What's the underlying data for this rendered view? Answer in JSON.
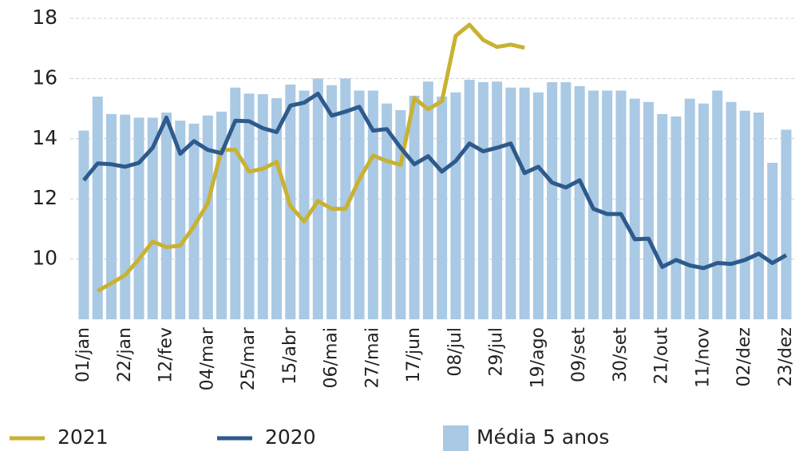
{
  "chart_data": {
    "type": "bar_line",
    "categories": [
      "01/jan",
      null,
      null,
      "22/jan",
      null,
      null,
      "12/fev",
      null,
      null,
      "04/mar",
      null,
      null,
      "25/mar",
      null,
      null,
      "15/abr",
      null,
      null,
      "06/mai",
      null,
      null,
      "27/mai",
      null,
      null,
      "17/jun",
      null,
      null,
      "08/jul",
      null,
      null,
      "29/jul",
      null,
      null,
      "19/ago",
      null,
      null,
      "09/set",
      null,
      null,
      "30/set",
      null,
      null,
      "21/out",
      null,
      null,
      "11/nov",
      null,
      null,
      "02/dez",
      null,
      null,
      "23/dez"
    ],
    "series": [
      {
        "name": "2021",
        "kind": "line",
        "color": "#c8b233",
        "values": [
          null,
          8.94,
          9.2,
          9.47,
          10.0,
          10.58,
          10.4,
          10.45,
          11.09,
          11.86,
          13.63,
          13.63,
          12.91,
          13.0,
          13.23,
          11.77,
          11.25,
          11.93,
          11.67,
          11.67,
          12.65,
          13.44,
          13.26,
          13.13,
          15.35,
          14.98,
          15.25,
          17.42,
          17.79,
          17.28,
          17.05,
          17.13,
          17.02,
          null,
          null,
          null,
          null,
          null,
          null,
          null,
          null,
          null,
          null,
          null,
          null,
          null,
          null,
          null,
          null,
          null,
          null,
          null
        ]
      },
      {
        "name": "2020",
        "kind": "line",
        "color": "#2e5a8c",
        "values": [
          12.62,
          13.18,
          13.15,
          13.07,
          13.2,
          13.7,
          14.7,
          13.5,
          13.92,
          13.63,
          13.52,
          14.6,
          14.58,
          14.35,
          14.22,
          15.1,
          15.2,
          15.5,
          14.77,
          14.9,
          15.06,
          14.27,
          14.32,
          13.7,
          13.15,
          13.42,
          12.91,
          13.26,
          13.84,
          13.58,
          13.7,
          13.84,
          12.86,
          13.07,
          12.54,
          12.38,
          12.62,
          11.67,
          11.5,
          11.5,
          10.66,
          10.68,
          9.74,
          9.97,
          9.79,
          9.7,
          9.87,
          9.84,
          9.97,
          10.18,
          9.87,
          10.13
        ]
      },
      {
        "name": "Média 5 anos",
        "kind": "bar",
        "color": "#a9c9e4",
        "values": [
          14.27,
          15.4,
          14.82,
          14.8,
          14.7,
          14.7,
          14.87,
          14.6,
          14.5,
          14.77,
          14.9,
          15.7,
          15.5,
          15.48,
          15.35,
          15.8,
          15.6,
          16.0,
          15.78,
          16.0,
          15.6,
          15.6,
          15.17,
          14.95,
          15.43,
          15.9,
          15.4,
          15.54,
          15.96,
          15.88,
          15.9,
          15.7,
          15.7,
          15.54,
          15.88,
          15.88,
          15.75,
          15.6,
          15.6,
          15.6,
          15.33,
          15.22,
          14.82,
          14.74,
          15.33,
          15.17,
          15.6,
          15.22,
          14.93,
          14.87,
          13.2,
          14.3
        ]
      }
    ],
    "ylim": [
      8,
      18
    ],
    "yticks": [
      10,
      12,
      14,
      16,
      18
    ],
    "grid": true,
    "legend": "bottom"
  }
}
